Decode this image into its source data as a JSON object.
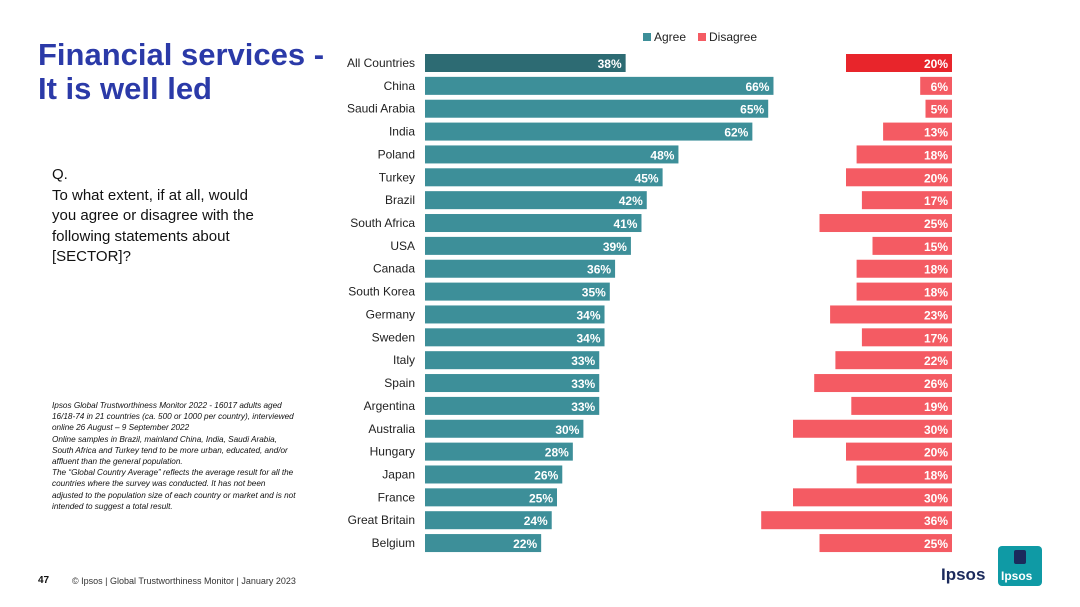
{
  "title": {
    "line1": "Financial services -",
    "line2": "It is well led"
  },
  "question": {
    "label": "Q.",
    "line1": "To what extent, if at all, would",
    "line2": "you agree or disagree with the",
    "line3": "following statements about",
    "line4": "[SECTOR]?"
  },
  "notes": {
    "line1": "Ipsos Global Trustworthiness Monitor 2022 - 16017 adults aged",
    "line2": "16/18-74 in 21 countries (ca. 500 or 1000 per country), interviewed",
    "line3": "online 26 August – 9 September 2022",
    "line4": "Online samples in Brazil, mainland China, India, Saudi Arabia,",
    "line5": "South Africa and Turkey tend to be more urban, educated, and/or",
    "line6": "affluent than the general population.",
    "line7": "The “Global Country Average” reflects the average result for all the",
    "line8": "countries where the survey was conducted. It has not been",
    "line9": "adjusted to the population size of each country or market and is not",
    "line10": "intended to suggest a total result."
  },
  "footer": {
    "page_number": "47",
    "text": "© Ipsos | Global Trustworthiness Monitor | January 2023"
  },
  "logo": {
    "word": "Ipsos",
    "box_text": "Ipsos"
  },
  "colors": {
    "agree": "#3d8f99",
    "agree_highlight": "#2d6b73",
    "disagree": "#f45b63",
    "disagree_highlight": "#e8252b"
  },
  "chart_data": {
    "type": "bar",
    "orientation": "horizontal",
    "title": "Financial services - It is well led",
    "legend_position": "top",
    "categories": [
      "All Countries",
      "China",
      "Saudi Arabia",
      "India",
      "Poland",
      "Turkey",
      "Brazil",
      "South Africa",
      "USA",
      "Canada",
      "South Korea",
      "Germany",
      "Sweden",
      "Italy",
      "Spain",
      "Argentina",
      "Australia",
      "Hungary",
      "Japan",
      "France",
      "Great Britain",
      "Belgium"
    ],
    "series": [
      {
        "name": "Agree",
        "values": [
          38,
          66,
          65,
          62,
          48,
          45,
          42,
          41,
          39,
          36,
          35,
          34,
          34,
          33,
          33,
          33,
          30,
          28,
          26,
          25,
          24,
          22
        ]
      },
      {
        "name": "Disagree",
        "values": [
          20,
          6,
          5,
          13,
          18,
          20,
          17,
          25,
          15,
          18,
          18,
          23,
          17,
          22,
          26,
          19,
          30,
          20,
          18,
          30,
          36,
          25
        ]
      }
    ],
    "value_suffix": "%",
    "xlim": [
      0,
      100
    ]
  }
}
